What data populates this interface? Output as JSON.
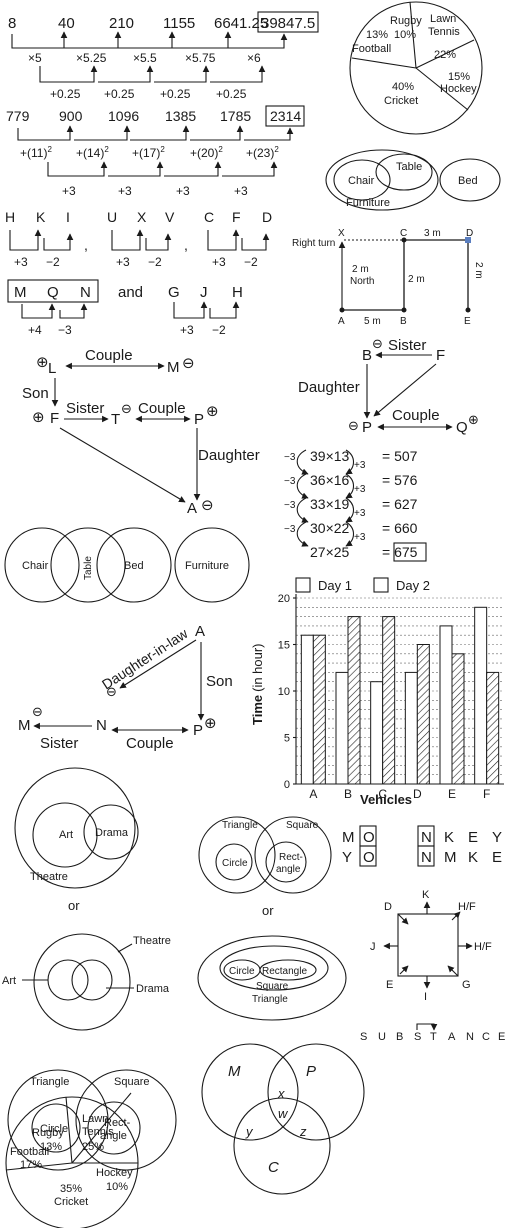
{
  "series1": {
    "terms": [
      "8",
      "40",
      "210",
      "1155",
      "6641.25",
      "39847.5"
    ],
    "mult": [
      "×5",
      "×5.25",
      "×5.5",
      "×5.75",
      "×6"
    ],
    "add": [
      "+0.25",
      "+0.25",
      "+0.25",
      "+0.25"
    ]
  },
  "series2": {
    "terms": [
      "779",
      "900",
      "1096",
      "1385",
      "1785",
      "2314"
    ],
    "squares": [
      "+(11)",
      "+(14)",
      "+(17)",
      "+(20)",
      "+(23)"
    ],
    "exp": "2",
    "add": [
      "+3",
      "+3",
      "+3",
      "+3"
    ]
  },
  "letters1": {
    "groups": [
      [
        "H",
        "K",
        "I"
      ],
      [
        "U",
        "X",
        "V"
      ],
      [
        "C",
        "F",
        "D"
      ]
    ],
    "ops": [
      "+3",
      "−2"
    ],
    "comma": ","
  },
  "letters2": {
    "boxed": [
      "M",
      "Q",
      "N"
    ],
    "ops1": [
      "+4",
      "−3"
    ],
    "and": "and",
    "plain": [
      "G",
      "J",
      "H"
    ],
    "ops2": [
      "+3",
      "−2"
    ]
  },
  "family1": {
    "L": "L",
    "M": "M",
    "F": "F",
    "T": "T",
    "P": "P",
    "A": "A",
    "couple1": "Couple",
    "son": "Son",
    "sister": "Sister",
    "couple2": "Couple",
    "daughter": "Daughter",
    "plus": "⊕",
    "minus": "⊖"
  },
  "venn1": [
    "Chair",
    "Table",
    "Bed",
    "Furniture"
  ],
  "family2": {
    "A": "A",
    "N": "N",
    "M": "M",
    "P": "P",
    "dil": "Daughter-in-law",
    "son": "Son",
    "sister": "Sister",
    "couple": "Couple",
    "plus": "⊕",
    "minus": "⊖"
  },
  "venn_art": {
    "art": "Art",
    "drama": "Drama",
    "theatre": "Theatre",
    "or": "or"
  },
  "venn_tri1": {
    "triangle": "Triangle",
    "square": "Square",
    "circle": "Circle",
    "rect1": "Rect-",
    "rect2": "angle"
  },
  "pie2": {
    "slices": [
      {
        "label": "Rugby",
        "value": "13%"
      },
      {
        "label": "Lawn",
        "label2": "Tennis",
        "value": "25%"
      },
      {
        "label": "Hockey",
        "value": "10%"
      },
      {
        "label": "Cricket",
        "value": "35%"
      },
      {
        "label": "Football",
        "value": "17%"
      }
    ]
  },
  "pie1": {
    "slices": [
      {
        "label": "Rugby",
        "value": "10%"
      },
      {
        "label": "Lawn",
        "label2": "Tennis",
        "value": "22%"
      },
      {
        "label": "Hockey",
        "value": "15%"
      },
      {
        "label": "Cricket",
        "value": "40%"
      },
      {
        "label": "Football",
        "value": "13%"
      }
    ]
  },
  "venn_furn": {
    "chair": "Chair",
    "table": "Table",
    "bed": "Bed",
    "furniture": "Furniture"
  },
  "route": {
    "right_turn": "Right turn",
    "X": "X",
    "C": "C",
    "D": "D",
    "A": "A",
    "B": "B",
    "E": "E",
    "north1": "2 m",
    "north2": "North",
    "ab": "5 m",
    "bc": "2 m",
    "cd": "3 m",
    "de": "2 m"
  },
  "family3": {
    "B": "B",
    "F": "F",
    "P": "P",
    "Q": "Q",
    "sister": "Sister",
    "daughter": "Daughter",
    "couple": "Couple",
    "plus": "⊕",
    "minus": "⊖"
  },
  "mult": {
    "rows": [
      [
        "39×13",
        "= 507"
      ],
      [
        "36×16",
        "= 576"
      ],
      [
        "33×19",
        "= 627"
      ],
      [
        "30×22",
        "= 660"
      ],
      [
        "27×25",
        "= 675"
      ]
    ],
    "minus": "−3",
    "plus": "+3"
  },
  "chart_data": {
    "type": "bar",
    "categories": [
      "A",
      "B",
      "C",
      "D",
      "E",
      "F"
    ],
    "series": [
      {
        "name": "Day 1",
        "values": [
          16,
          12,
          11,
          12,
          17,
          19
        ]
      },
      {
        "name": "Day 2",
        "values": [
          16,
          18,
          18,
          15,
          14,
          12
        ]
      }
    ],
    "title": "",
    "xlabel": "Vehicles",
    "ylabel": "Time",
    "ylabel_unit": "(in hour)",
    "ylim": [
      0,
      20
    ],
    "yticks": [
      "0",
      "5",
      "10",
      "15",
      "20"
    ],
    "grid": true,
    "legend": "top"
  },
  "monkey": {
    "top": [
      "M",
      "O",
      "N",
      "K",
      "E",
      "Y"
    ],
    "bottom": [
      "Y",
      "O",
      "N",
      "M",
      "K",
      "E"
    ]
  },
  "compass": {
    "K": "K",
    "HF1": "H/F",
    "D": "D",
    "J": "J",
    "HF2": "H/F",
    "E": "E",
    "I": "I",
    "G": "G"
  },
  "substance": {
    "letters": [
      "S",
      "U",
      "B",
      "S",
      "T",
      "A",
      "N",
      "C",
      "E"
    ]
  },
  "venn_tri2": {
    "triangle": "Triangle",
    "square": "Square",
    "circle": "Circle",
    "rect1": "Rect-",
    "rect2": "angle",
    "or": "or",
    "rectangle": "Rectangle"
  },
  "venn_mpc": {
    "M": "M",
    "P": "P",
    "C": "C",
    "x": "x",
    "y": "y",
    "z": "z",
    "w": "w"
  }
}
